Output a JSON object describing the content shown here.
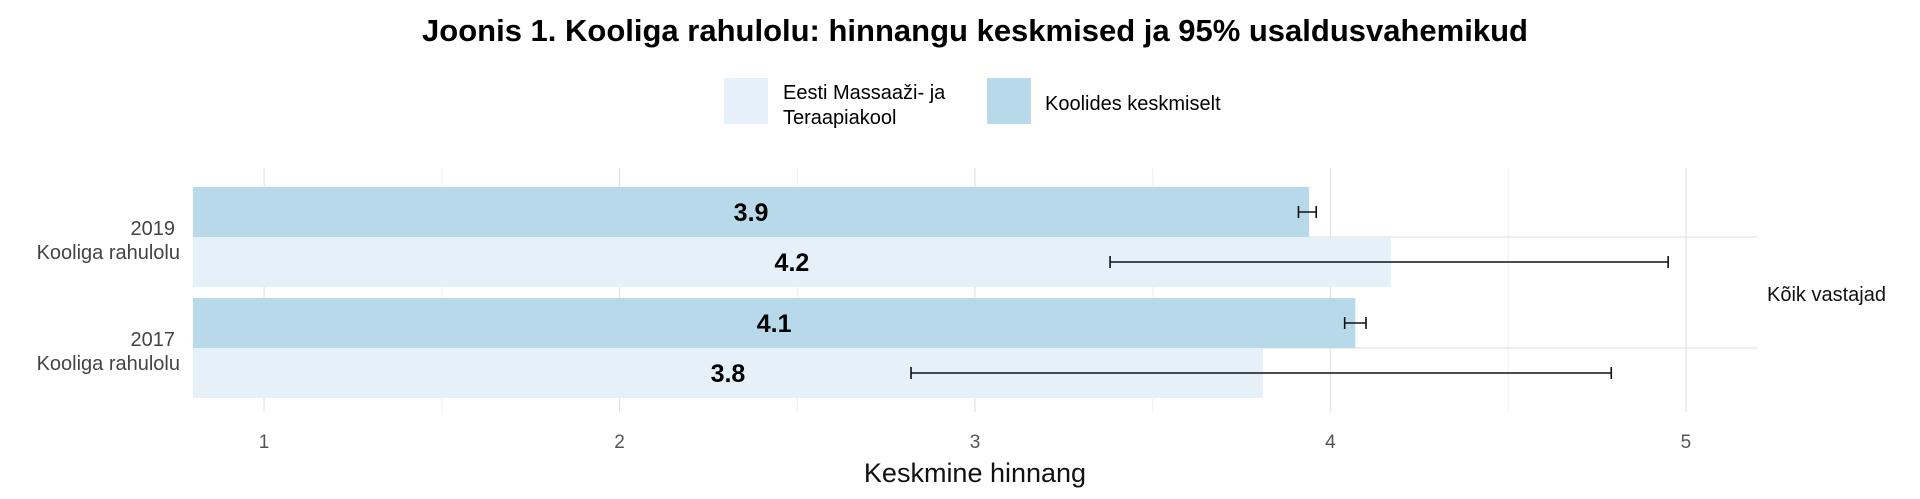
{
  "chart_data": {
    "type": "bar",
    "orientation": "horizontal",
    "title": "Joonis 1. Kooliga rahulolu: hinnangu keskmised ja 95% usaldusvahemikud",
    "xlabel": "Keskmine hinnang",
    "ylabel": "",
    "xlim": [
      0.8,
      5.2
    ],
    "xticks": [
      1,
      2,
      3,
      4,
      5
    ],
    "grid": true,
    "legend_position": "top",
    "facet_label": "Kõik vastajad",
    "categories": [
      {
        "year": "2019",
        "label": "Kooliga rahulolu"
      },
      {
        "year": "2017",
        "label": "Kooliga rahulolu"
      }
    ],
    "series": [
      {
        "name": "Koolides keskmiselt",
        "color": "#b8d9e9",
        "values": [
          3.94,
          4.07
        ],
        "value_labels": [
          "3.9",
          "4.1"
        ],
        "ci_low": [
          3.91,
          4.04
        ],
        "ci_high": [
          3.96,
          4.1
        ]
      },
      {
        "name": "Eesti Massaaži- ja Teraapiakool",
        "name_lines": [
          "Eesti Massaaži- ja",
          "Teraapiakool"
        ],
        "color": "#e6f0f9",
        "values": [
          4.17,
          3.81
        ],
        "value_labels": [
          "4.2",
          "3.8"
        ],
        "ci_low": [
          3.38,
          2.82
        ],
        "ci_high": [
          4.95,
          4.79
        ]
      }
    ]
  }
}
